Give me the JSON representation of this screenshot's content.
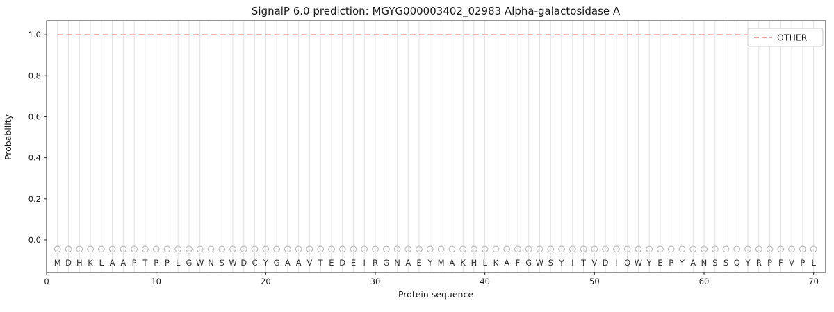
{
  "chart_data": {
    "type": "line",
    "title": "SignalP 6.0 prediction: MGYG000003402_02983 Alpha-galactosidase A",
    "xlabel": "Protein sequence",
    "ylabel": "Probability",
    "xlim": [
      0,
      71.1
    ],
    "ylim": [
      -0.159,
      1.068
    ],
    "xticks": [
      0,
      10,
      20,
      30,
      40,
      50,
      60,
      70
    ],
    "yticks": [
      0.0,
      0.2,
      0.4,
      0.6,
      0.8,
      1.0
    ],
    "grid": "vertical line at every residue position",
    "legend": {
      "position": "upper right",
      "entries": [
        {
          "label": "OTHER",
          "color": "#f08080",
          "dash": true
        }
      ]
    },
    "series": [
      {
        "name": "OTHER",
        "color": "#f08080",
        "style": "dashed",
        "x_start": 1,
        "x_end": 70,
        "constant_y": 1.0
      }
    ],
    "residue_marker": {
      "shape": "circle",
      "fill": "none",
      "stroke": "#bdbdbd",
      "y": -0.045
    },
    "sequence_letter_y": -0.112,
    "sequence": [
      "M",
      "D",
      "H",
      "K",
      "L",
      "A",
      "A",
      "P",
      "T",
      "P",
      "P",
      "L",
      "G",
      "W",
      "N",
      "S",
      "W",
      "D",
      "C",
      "Y",
      "G",
      "A",
      "A",
      "V",
      "T",
      "E",
      "D",
      "E",
      "I",
      "R",
      "G",
      "N",
      "A",
      "E",
      "Y",
      "M",
      "A",
      "K",
      "H",
      "L",
      "K",
      "A",
      "F",
      "G",
      "W",
      "S",
      "Y",
      "I",
      "T",
      "V",
      "D",
      "I",
      "Q",
      "W",
      "Y",
      "E",
      "P",
      "Y",
      "A",
      "N",
      "S",
      "S",
      "Q",
      "Y",
      "R",
      "P",
      "F",
      "V",
      "P",
      "L"
    ]
  }
}
